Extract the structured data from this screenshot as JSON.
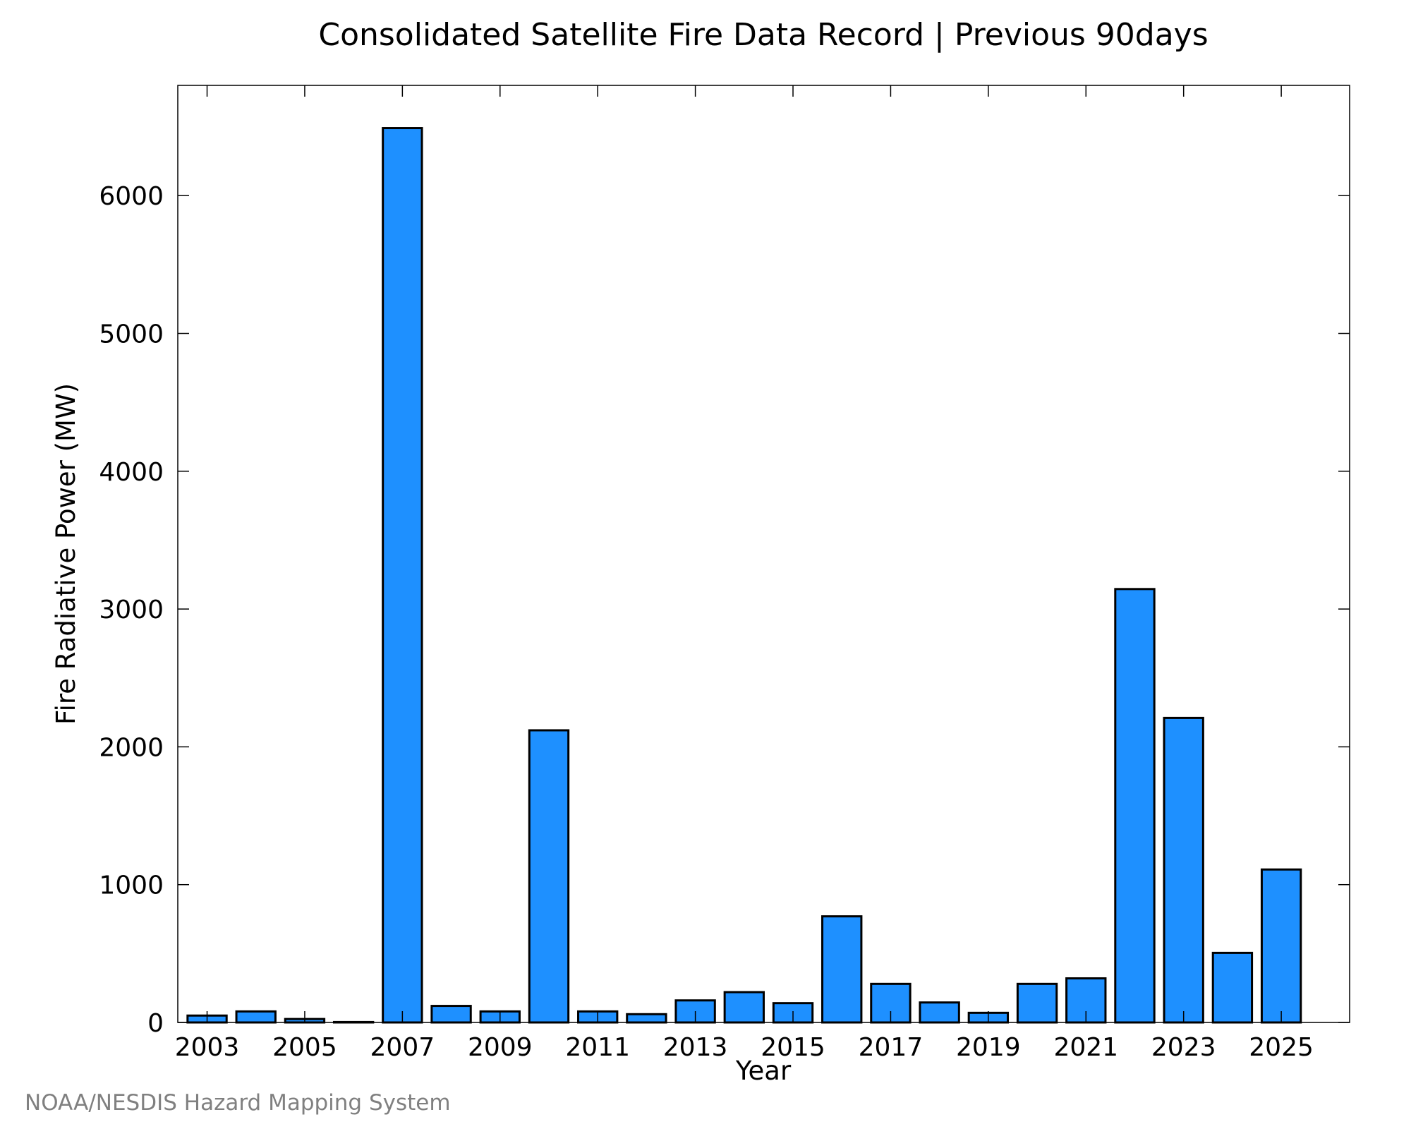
{
  "chart_data": {
    "type": "bar",
    "title": "Consolidated Satellite Fire Data Record | Previous 90days",
    "xlabel": "Year",
    "ylabel": "Fire Radiative Power (MW)",
    "categories": [
      "2003",
      "2004",
      "2005",
      "2006",
      "2007",
      "2008",
      "2009",
      "2010",
      "2011",
      "2012",
      "2013",
      "2014",
      "2015",
      "2016",
      "2017",
      "2018",
      "2019",
      "2020",
      "2021",
      "2022",
      "2023",
      "2024",
      "2025"
    ],
    "values": [
      50,
      80,
      25,
      3,
      6490,
      120,
      80,
      2120,
      80,
      60,
      160,
      220,
      140,
      770,
      280,
      145,
      70,
      280,
      320,
      3145,
      2210,
      505,
      1110
    ],
    "x_tick_labels": [
      "2003",
      "2005",
      "2007",
      "2009",
      "2011",
      "2013",
      "2015",
      "2017",
      "2019",
      "2021",
      "2023",
      "2025"
    ],
    "y_tick_labels": [
      "0",
      "1000",
      "2000",
      "3000",
      "4000",
      "5000",
      "6000"
    ],
    "y_ticks": [
      0,
      1000,
      2000,
      3000,
      4000,
      5000,
      6000
    ],
    "ylim": [
      0,
      6800
    ],
    "xlim": [
      2002.4,
      2026.4
    ],
    "grid": false,
    "bar_color": "#1E90FF"
  },
  "footer": {
    "credit": "NOAA/NESDIS Hazard Mapping System"
  }
}
